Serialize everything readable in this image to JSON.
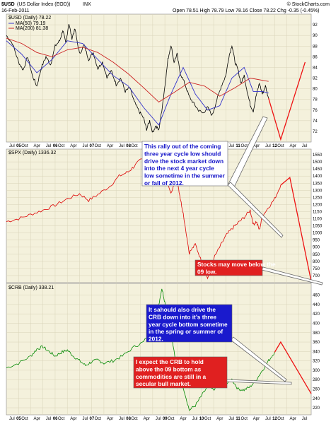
{
  "header": {
    "symbol": "$USD",
    "name": "(US Dollar Index (EOD))",
    "exchange": "INX",
    "date": "16-Feb-2011",
    "quote": "Open 78.51  High 78.79  Low 78.16  Close 78.22  Chg -0.35 (-0.45%)",
    "watermark": "© StockCharts.com"
  },
  "x_axis": {
    "months": [
      "Jul",
      "Oct",
      "Apr",
      "Jul",
      "Oct",
      "Apr",
      "Jul",
      "Oct",
      "Apr",
      "Jul",
      "Oct",
      "Apr",
      "Jul",
      "Oct",
      "Apr",
      "Jul",
      "Oct",
      "Apr",
      "Jul",
      "Oct",
      "Apr",
      "Jul",
      "Oct",
      "Apr",
      "Jul"
    ],
    "years": [
      "05",
      "06",
      "07",
      "08",
      "09",
      "10",
      "11",
      "12"
    ]
  },
  "annotations": [
    {
      "lines": [
        "This rally out of the coming",
        "three year cycle low should",
        "drive the stock market down",
        "into the next 4 year cycle",
        "low sometime in the summer",
        "or fall of 2012."
      ],
      "color": "#1010c8"
    },
    {
      "lines": [
        "Stocks may move below the",
        "09 low."
      ],
      "color": "#ffffff"
    },
    {
      "lines": [
        "It sahould also drive the",
        "CRB down into it's three",
        "year cycle bottom sometime",
        "in the spring or summer of",
        "2012."
      ],
      "color": "#ffffff"
    },
    {
      "lines": [
        "I expect the CRB to hold",
        "above the 09 bottom as",
        "commodities are still in a",
        "secular bull market."
      ],
      "color": "#ffffff"
    }
  ],
  "chart_data": [
    {
      "type": "line",
      "title": "$USD (Daily) 78.22",
      "legend": [
        "MA(50) 79.19",
        "MA(200) 81.38"
      ],
      "ylim": [
        70,
        94
      ],
      "yticks": [
        72,
        74,
        76,
        78,
        80,
        82,
        84,
        86,
        88,
        90,
        92
      ],
      "series": [
        {
          "name": "$USD",
          "color": "#000000",
          "points": [
            [
              0,
              90
            ],
            [
              0.02,
              88.5
            ],
            [
              0.04,
              85
            ],
            [
              0.055,
              83.5
            ],
            [
              0.07,
              86
            ],
            [
              0.085,
              82.5
            ],
            [
              0.1,
              80.5
            ],
            [
              0.115,
              84
            ],
            [
              0.13,
              86
            ],
            [
              0.145,
              84.5
            ],
            [
              0.16,
              88
            ],
            [
              0.175,
              89
            ],
            [
              0.185,
              91
            ],
            [
              0.195,
              88.5
            ],
            [
              0.205,
              92.3
            ],
            [
              0.215,
              89.5
            ],
            [
              0.225,
              91.2
            ],
            [
              0.24,
              86.5
            ],
            [
              0.255,
              88.2
            ],
            [
              0.27,
              85.5
            ],
            [
              0.285,
              86.8
            ],
            [
              0.3,
              83.8
            ],
            [
              0.315,
              85
            ],
            [
              0.33,
              82.2
            ],
            [
              0.345,
              83.3
            ],
            [
              0.36,
              80.8
            ],
            [
              0.375,
              82
            ],
            [
              0.39,
              79.5
            ],
            [
              0.405,
              80.2
            ],
            [
              0.42,
              77.5
            ],
            [
              0.435,
              75.8
            ],
            [
              0.45,
              74.5
            ],
            [
              0.46,
              72.4
            ],
            [
              0.47,
              74
            ],
            [
              0.48,
              71.8
            ],
            [
              0.49,
              73
            ],
            [
              0.5,
              72.2
            ],
            [
              0.51,
              76
            ],
            [
              0.52,
              80.5
            ],
            [
              0.53,
              85.5
            ],
            [
              0.54,
              88.2
            ],
            [
              0.55,
              85
            ],
            [
              0.56,
              86.5
            ],
            [
              0.57,
              83
            ],
            [
              0.585,
              81
            ],
            [
              0.6,
              78.5
            ],
            [
              0.615,
              77.2
            ],
            [
              0.63,
              76
            ],
            [
              0.645,
              75.4
            ],
            [
              0.66,
              76.5
            ],
            [
              0.675,
              75
            ],
            [
              0.69,
              77.8
            ],
            [
              0.705,
              80.5
            ],
            [
              0.72,
              82.5
            ],
            [
              0.73,
              86
            ],
            [
              0.74,
              88.2
            ],
            [
              0.75,
              85
            ],
            [
              0.76,
              83.5
            ],
            [
              0.77,
              81
            ],
            [
              0.78,
              82.5
            ],
            [
              0.79,
              79.5
            ],
            [
              0.8,
              77
            ],
            [
              0.81,
              75.8
            ],
            [
              0.82,
              78.8
            ],
            [
              0.83,
              81
            ],
            [
              0.84,
              79
            ],
            [
              0.85,
              80.5
            ],
            [
              0.86,
              78.22
            ]
          ]
        },
        {
          "name": "MA(50)",
          "color": "#3333cc",
          "points": [
            [
              0,
              89
            ],
            [
              0.05,
              86.5
            ],
            [
              0.1,
              83
            ],
            [
              0.15,
              85.5
            ],
            [
              0.2,
              89
            ],
            [
              0.25,
              88.5
            ],
            [
              0.3,
              85.5
            ],
            [
              0.35,
              82.5
            ],
            [
              0.4,
              80.5
            ],
            [
              0.45,
              76.5
            ],
            [
              0.5,
              73.2
            ],
            [
              0.54,
              79
            ],
            [
              0.58,
              84
            ],
            [
              0.62,
              79
            ],
            [
              0.66,
              76
            ],
            [
              0.7,
              76.8
            ],
            [
              0.74,
              82
            ],
            [
              0.78,
              84
            ],
            [
              0.81,
              79.5
            ],
            [
              0.84,
              79.5
            ],
            [
              0.86,
              79.19
            ]
          ]
        },
        {
          "name": "MA(200)",
          "color": "#cc2222",
          "points": [
            [
              0,
              89.5
            ],
            [
              0.05,
              88.5
            ],
            [
              0.1,
              86.8
            ],
            [
              0.15,
              86
            ],
            [
              0.2,
              87.3
            ],
            [
              0.25,
              87.8
            ],
            [
              0.3,
              86.8
            ],
            [
              0.35,
              85
            ],
            [
              0.4,
              82.8
            ],
            [
              0.45,
              80.2
            ],
            [
              0.5,
              77.5
            ],
            [
              0.55,
              79.3
            ],
            [
              0.6,
              81.2
            ],
            [
              0.65,
              80.5
            ],
            [
              0.7,
              78.6
            ],
            [
              0.75,
              80.2
            ],
            [
              0.8,
              82
            ],
            [
              0.86,
              81.38
            ]
          ]
        },
        {
          "name": "projection",
          "color": "#ee1111",
          "points": [
            [
              0.86,
              78.22
            ],
            [
              0.9,
              70.5
            ],
            [
              0.98,
              85
            ]
          ]
        }
      ]
    },
    {
      "type": "line",
      "title": "$SPX (Daily) 1336.32",
      "ylim": [
        650,
        1590
      ],
      "yticks": [
        700,
        750,
        800,
        850,
        900,
        950,
        1000,
        1050,
        1100,
        1150,
        1200,
        1250,
        1300,
        1350,
        1400,
        1450,
        1500,
        1550
      ],
      "series": [
        {
          "name": "$SPX",
          "color": "#dd0000",
          "points": [
            [
              0,
              1080
            ],
            [
              0.04,
              1100
            ],
            [
              0.08,
              1130
            ],
            [
              0.12,
              1160
            ],
            [
              0.16,
              1195
            ],
            [
              0.2,
              1240
            ],
            [
              0.24,
              1275
            ],
            [
              0.27,
              1230
            ],
            [
              0.3,
              1270
            ],
            [
              0.34,
              1330
            ],
            [
              0.37,
              1400
            ],
            [
              0.4,
              1430
            ],
            [
              0.42,
              1470
            ],
            [
              0.44,
              1515
            ],
            [
              0.46,
              1530
            ],
            [
              0.47,
              1440
            ],
            [
              0.49,
              1550
            ],
            [
              0.5,
              1370
            ],
            [
              0.52,
              1400
            ],
            [
              0.54,
              1290
            ],
            [
              0.56,
              1380
            ],
            [
              0.57,
              1250
            ],
            [
              0.58,
              1140
            ],
            [
              0.6,
              860
            ],
            [
              0.62,
              920
            ],
            [
              0.64,
              800
            ],
            [
              0.66,
              680
            ],
            [
              0.68,
              820
            ],
            [
              0.7,
              900
            ],
            [
              0.72,
              980
            ],
            [
              0.74,
              1030
            ],
            [
              0.76,
              1070
            ],
            [
              0.78,
              1110
            ],
            [
              0.8,
              1160
            ],
            [
              0.81,
              1060
            ],
            [
              0.82,
              1080
            ],
            [
              0.83,
              1020
            ],
            [
              0.84,
              1120
            ],
            [
              0.86,
              1180
            ],
            [
              0.88,
              1240
            ],
            [
              0.9,
              1336.32
            ]
          ]
        },
        {
          "name": "projection",
          "color": "#ee1111",
          "points": [
            [
              0.9,
              1336.32
            ],
            [
              0.93,
              1390
            ],
            [
              1.0,
              660
            ]
          ]
        }
      ]
    },
    {
      "type": "line",
      "title": "$CRB (Daily) 338.21",
      "ylim": [
        205,
        485
      ],
      "yticks": [
        220,
        240,
        260,
        280,
        300,
        320,
        340,
        360,
        380,
        400,
        420,
        440,
        460
      ],
      "series": [
        {
          "name": "$CRB",
          "color": "#008800",
          "points": [
            [
              0,
              305
            ],
            [
              0.04,
              315
            ],
            [
              0.08,
              330
            ],
            [
              0.1,
              345
            ],
            [
              0.12,
              350
            ],
            [
              0.14,
              340
            ],
            [
              0.16,
              330
            ],
            [
              0.18,
              338
            ],
            [
              0.2,
              343
            ],
            [
              0.22,
              330
            ],
            [
              0.24,
              320
            ],
            [
              0.26,
              310
            ],
            [
              0.28,
              318
            ],
            [
              0.3,
              322
            ],
            [
              0.32,
              315
            ],
            [
              0.35,
              320
            ],
            [
              0.38,
              330
            ],
            [
              0.42,
              350
            ],
            [
              0.45,
              360
            ],
            [
              0.48,
              390
            ],
            [
              0.5,
              440
            ],
            [
              0.51,
              475
            ],
            [
              0.52,
              445
            ],
            [
              0.54,
              380
            ],
            [
              0.56,
              300
            ],
            [
              0.58,
              265
            ],
            [
              0.6,
              215
            ],
            [
              0.62,
              225
            ],
            [
              0.64,
              245
            ],
            [
              0.66,
              265
            ],
            [
              0.68,
              258
            ],
            [
              0.7,
              275
            ],
            [
              0.72,
              270
            ],
            [
              0.74,
              280
            ],
            [
              0.76,
              260
            ],
            [
              0.78,
              258
            ],
            [
              0.8,
              265
            ],
            [
              0.82,
              280
            ],
            [
              0.84,
              300
            ],
            [
              0.86,
              320
            ],
            [
              0.88,
              338.21
            ]
          ]
        },
        {
          "name": "projection",
          "color": "#ee1111",
          "points": [
            [
              0.88,
              338.21
            ],
            [
              0.9,
              360
            ],
            [
              1.0,
              250
            ]
          ]
        }
      ]
    }
  ]
}
